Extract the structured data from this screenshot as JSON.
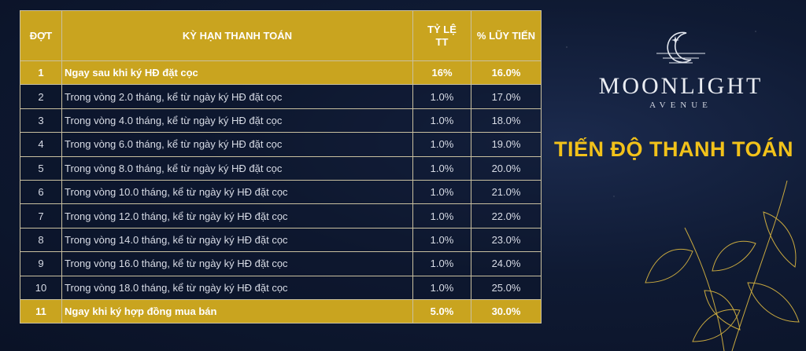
{
  "table": {
    "headers": [
      "ĐỢT",
      "KỲ HẠN THANH TOÁN",
      "TỶ LỆ\nTT",
      "% LŨY TIẾN"
    ],
    "header_lines": {
      "rate_line1": "TỶ LỆ",
      "rate_line2": "TT"
    },
    "rows": [
      {
        "stage": "1",
        "term": "Ngay sau khi ký HĐ đặt cọc",
        "rate": "16%",
        "cumulative": "16.0%"
      },
      {
        "stage": "2",
        "term": "Trong vòng 2.0 tháng, kể từ ngày ký HĐ đặt cọc",
        "rate": "1.0%",
        "cumulative": "17.0%"
      },
      {
        "stage": "3",
        "term": "Trong vòng 4.0 tháng, kể từ ngày ký HĐ đặt cọc",
        "rate": "1.0%",
        "cumulative": "18.0%"
      },
      {
        "stage": "4",
        "term": "Trong vòng 6.0 tháng, kể từ ngày ký HĐ đặt cọc",
        "rate": "1.0%",
        "cumulative": "19.0%"
      },
      {
        "stage": "5",
        "term": "Trong vòng 8.0 tháng, kể từ ngày ký HĐ đặt cọc",
        "rate": "1.0%",
        "cumulative": "20.0%"
      },
      {
        "stage": "6",
        "term": "Trong vòng 10.0 tháng, kể từ ngày ký HĐ đặt cọc",
        "rate": "1.0%",
        "cumulative": "21.0%"
      },
      {
        "stage": "7",
        "term": "Trong vòng 12.0 tháng, kể từ ngày ký HĐ đặt cọc",
        "rate": "1.0%",
        "cumulative": "22.0%"
      },
      {
        "stage": "8",
        "term": "Trong vòng 14.0 tháng, kể từ ngày ký HĐ đặt cọc",
        "rate": "1.0%",
        "cumulative": "23.0%"
      },
      {
        "stage": "9",
        "term": "Trong vòng 16.0 tháng, kể từ ngày ký HĐ đặt cọc",
        "rate": "1.0%",
        "cumulative": "24.0%"
      },
      {
        "stage": "10",
        "term": "Trong vòng 18.0 tháng, kể từ ngày ký HĐ đặt cọc",
        "rate": "1.0%",
        "cumulative": "25.0%"
      },
      {
        "stage": "11",
        "term": "Ngay khi ký hợp đồng mua bán",
        "rate": "5.0%",
        "cumulative": "30.0%"
      }
    ],
    "highlighted_rows": [
      "1",
      "11"
    ]
  },
  "brand": {
    "name": "MOONLIGHT",
    "subtitle": "AVENUE",
    "logo_icon": "crescent-moon-icon"
  },
  "section_title": "TIẾN ĐỘ THANH TOÁN",
  "colors": {
    "gold": "#c9a41f",
    "title_yellow": "#f2c21a",
    "background": "#0f1a33"
  },
  "decoration": "gold-leaf-line-art"
}
